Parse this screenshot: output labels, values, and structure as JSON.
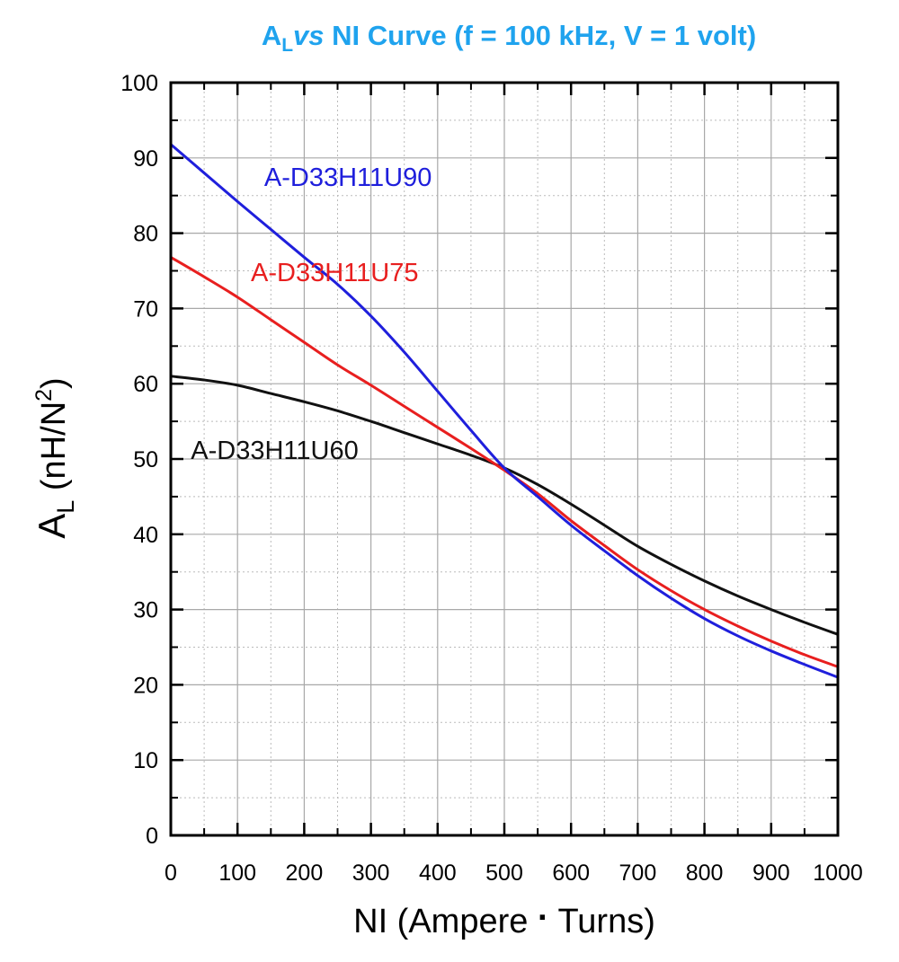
{
  "chart_data": {
    "type": "line",
    "title": {
      "prefix": "A",
      "subscript": "L",
      "italic": "vs",
      "rest": " NI Curve (f = 100 kHz, V = 1 volt)"
    },
    "title_color": "#1fa3ee",
    "xlabel": {
      "before": "NI (Ampere ",
      "dot": "·",
      "after": " Turns)"
    },
    "ylabel": {
      "main": "A",
      "subscript": "L",
      "units_open": " (nH/N",
      "superscript": "2",
      "units_close": ")"
    },
    "xlim": [
      0,
      1000
    ],
    "ylim": [
      0,
      100
    ],
    "x_major_ticks": [
      0,
      100,
      200,
      300,
      400,
      500,
      600,
      700,
      800,
      900,
      1000
    ],
    "y_major_ticks": [
      0,
      10,
      20,
      30,
      40,
      50,
      60,
      70,
      80,
      90,
      100
    ],
    "x_tick_labels": [
      "0",
      "100",
      "200",
      "300",
      "400",
      "500",
      "600",
      "700",
      "800",
      "900",
      "1000"
    ],
    "y_tick_labels": [
      "0",
      "10",
      "20",
      "30",
      "40",
      "50",
      "60",
      "70",
      "80",
      "90",
      "100"
    ],
    "grid": true,
    "series": [
      {
        "name": "A-D33H11U90",
        "color": "#1f1fdc",
        "x": [
          0,
          50,
          100,
          150,
          200,
          250,
          300,
          350,
          400,
          450,
          500,
          550,
          600,
          650,
          700,
          750,
          800,
          850,
          900,
          950,
          1000
        ],
        "y": [
          91.8,
          88.0,
          84.2,
          80.5,
          76.8,
          73.2,
          69.0,
          64.2,
          59.0,
          53.8,
          48.8,
          45.0,
          41.2,
          37.8,
          34.5,
          31.5,
          28.8,
          26.5,
          24.5,
          22.7,
          21.0
        ]
      },
      {
        "name": "A-D33H11U75",
        "color": "#e81f1f",
        "x": [
          0,
          50,
          100,
          150,
          200,
          250,
          300,
          350,
          400,
          450,
          500,
          550,
          600,
          650,
          700,
          750,
          800,
          850,
          900,
          950,
          1000
        ],
        "y": [
          76.8,
          74.2,
          71.5,
          68.5,
          65.5,
          62.5,
          59.8,
          57.0,
          54.2,
          51.4,
          48.5,
          45.4,
          41.8,
          38.5,
          35.3,
          32.5,
          30.0,
          27.8,
          25.8,
          24.0,
          22.4
        ]
      },
      {
        "name": "A-D33H11U60",
        "color": "#111111",
        "x": [
          0,
          50,
          100,
          150,
          200,
          250,
          300,
          350,
          400,
          450,
          500,
          550,
          600,
          650,
          700,
          750,
          800,
          850,
          900,
          950,
          1000
        ],
        "y": [
          61.0,
          60.5,
          59.8,
          58.7,
          57.6,
          56.4,
          55.0,
          53.5,
          52.0,
          50.5,
          48.8,
          46.6,
          44.0,
          41.2,
          38.4,
          36.0,
          33.8,
          31.8,
          30.0,
          28.3,
          26.7
        ]
      }
    ],
    "series_label_positions": [
      {
        "x": 140,
        "y": 86.3
      },
      {
        "x": 120,
        "y": 73.6
      },
      {
        "x": 30,
        "y": 50.0
      }
    ]
  }
}
